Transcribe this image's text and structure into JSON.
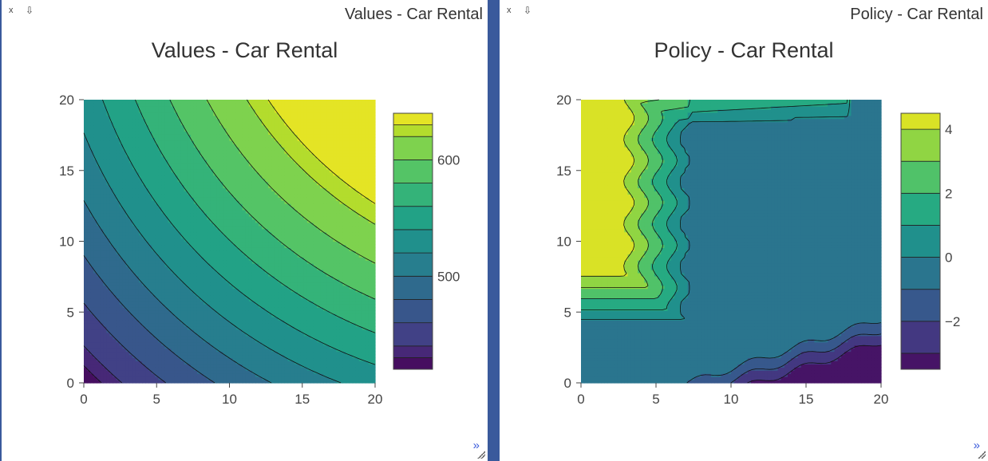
{
  "panels": [
    {
      "close_label": "x",
      "dock_label": "⇩",
      "panel_title": "Values - Car Rental",
      "expand_label": "»"
    },
    {
      "close_label": "x",
      "dock_label": "⇩",
      "panel_title": "Policy - Car Rental",
      "expand_label": "»"
    }
  ],
  "chart_data": [
    {
      "type": "heatmap",
      "subtype": "contour",
      "title": "Values - Car Rental",
      "xlabel": "",
      "ylabel": "",
      "xlim": [
        0,
        20
      ],
      "ylim": [
        0,
        20
      ],
      "x_ticks": [
        0,
        5,
        10,
        15,
        20
      ],
      "y_ticks": [
        0,
        5,
        10,
        15,
        20
      ],
      "colorscale": "viridis",
      "colorbar_range": [
        420,
        640
      ],
      "colorbar_ticks": [
        500,
        600
      ],
      "contour_levels": [
        420,
        430,
        440,
        460,
        480,
        500,
        520,
        540,
        560,
        580,
        600,
        620,
        630,
        640
      ],
      "grid": false,
      "legend": "colorbar-right"
    },
    {
      "type": "heatmap",
      "subtype": "contour",
      "title": "Policy - Car Rental",
      "xlabel": "",
      "ylabel": "",
      "xlim": [
        0,
        20
      ],
      "ylim": [
        0,
        20
      ],
      "x_ticks": [
        0,
        5,
        10,
        15,
        20
      ],
      "y_ticks": [
        0,
        5,
        10,
        15,
        20
      ],
      "colorscale": "viridis",
      "colorbar_range": [
        -3.5,
        4.5
      ],
      "colorbar_ticks": [
        -2,
        0,
        2,
        4
      ],
      "contour_levels": [
        -3.5,
        -3,
        -2,
        -1,
        0,
        1,
        2,
        3,
        4,
        4.5
      ],
      "grid": false,
      "legend": "colorbar-right"
    }
  ]
}
